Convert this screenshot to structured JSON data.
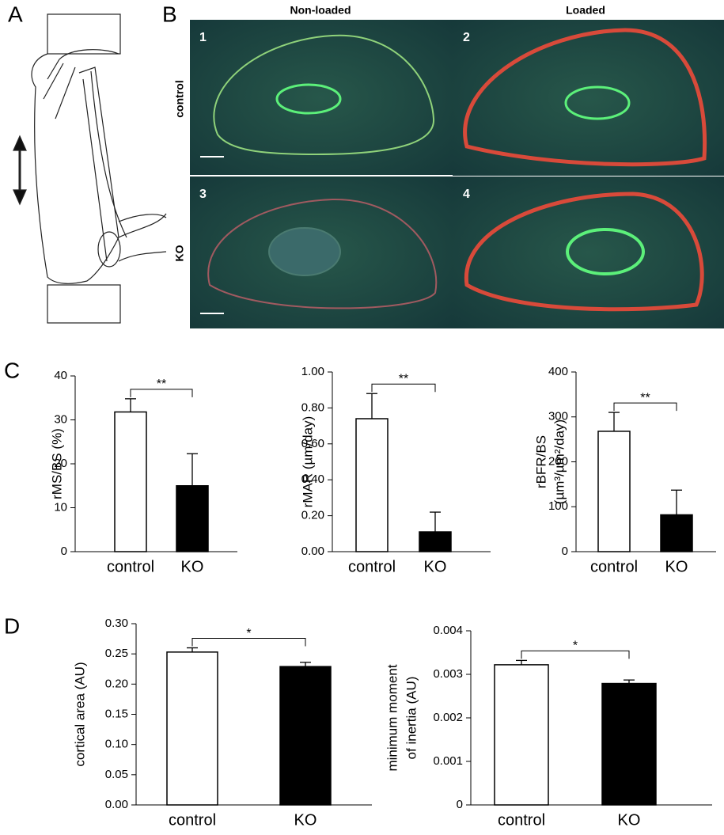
{
  "panel_labels": [
    "A",
    "B",
    "C",
    "D"
  ],
  "panel_b": {
    "column_titles": [
      "Non-loaded",
      "Loaded"
    ],
    "row_labels": [
      "control",
      "KO"
    ],
    "image_numbers": [
      "1",
      "2",
      "3",
      "4"
    ]
  },
  "chart_data": [
    {
      "type": "bar",
      "ylabel": "rMS/BS (%)",
      "categories": [
        "control",
        "KO"
      ],
      "values": [
        31.8,
        15
      ],
      "errors": [
        3,
        7.3
      ],
      "colors": [
        "#ffffff",
        "#000000"
      ],
      "significance": "**",
      "ylim": [
        0,
        40
      ],
      "yticks": [
        0,
        10,
        20,
        30,
        40
      ]
    },
    {
      "type": "bar",
      "ylabel": "rMAR (µm/day)",
      "categories": [
        "control",
        "KO"
      ],
      "values": [
        0.74,
        0.11
      ],
      "errors": [
        0.14,
        0.11
      ],
      "colors": [
        "#ffffff",
        "#000000"
      ],
      "significance": "**",
      "ylim": [
        0,
        1
      ],
      "yticks": [
        {
          "value": 0,
          "label": "0.00"
        },
        {
          "value": 0.2,
          "label": "0.20"
        },
        {
          "value": 0.4,
          "label": "0.40"
        },
        {
          "value": 0.6,
          "label": "0.60"
        },
        {
          "value": 0.8,
          "label": "0.80"
        },
        {
          "value": 1,
          "label": "1.00"
        }
      ]
    },
    {
      "type": "bar",
      "ylabel": [
        "rBFR/BS",
        "(µm³/µm²/day)"
      ],
      "categories": [
        "control",
        "KO"
      ],
      "values": [
        268,
        82
      ],
      "errors": [
        42,
        55
      ],
      "colors": [
        "#ffffff",
        "#000000"
      ],
      "significance": "**",
      "ylim": [
        0,
        400
      ],
      "yticks": [
        0,
        100,
        200,
        300,
        400
      ]
    },
    {
      "type": "bar",
      "ylabel": "cortical area (AU)",
      "categories": [
        "control",
        "KO"
      ],
      "values": [
        0.253,
        0.229
      ],
      "errors": [
        0.007,
        0.007
      ],
      "colors": [
        "#ffffff",
        "#000000"
      ],
      "significance": "*",
      "ylim": [
        0,
        0.3
      ],
      "yticks": [
        {
          "value": 0,
          "label": "0.00"
        },
        {
          "value": 0.05,
          "label": "0.05"
        },
        {
          "value": 0.1,
          "label": "0.10"
        },
        {
          "value": 0.15,
          "label": "0.15"
        },
        {
          "value": 0.2,
          "label": "0.20"
        },
        {
          "value": 0.25,
          "label": "0.25"
        },
        {
          "value": 0.3,
          "label": "0.30"
        }
      ]
    },
    {
      "type": "bar",
      "ylabel": [
        "minimum moment",
        "of inertia (AU)"
      ],
      "categories": [
        "control",
        "KO"
      ],
      "values": [
        0.00322,
        0.00279
      ],
      "errors": [
        0.0001,
        8e-05
      ],
      "colors": [
        "#ffffff",
        "#000000"
      ],
      "significance": "*",
      "ylim": [
        0,
        0.004
      ],
      "yticks": [
        0,
        0.001,
        0.002,
        0.003,
        0.004
      ]
    }
  ]
}
